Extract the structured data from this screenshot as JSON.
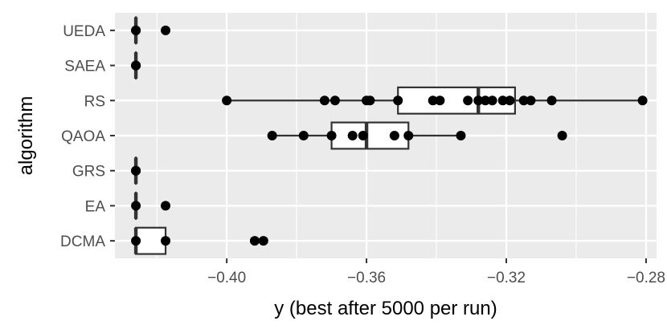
{
  "chart_data": {
    "type": "boxplot",
    "orientation": "horizontal",
    "xlabel": "y (best after 5000 per run)",
    "ylabel": "algorithm",
    "xlim": [
      -0.432,
      -0.277
    ],
    "x_ticks": [
      -0.4,
      -0.36,
      -0.32,
      -0.28
    ],
    "x_tick_labels": [
      "−0.40",
      "−0.36",
      "−0.32",
      "−0.28"
    ],
    "categories": [
      "UEDA",
      "SAEA",
      "RS",
      "QAOA",
      "GRS",
      "EA",
      "DCMA"
    ],
    "grid": true,
    "legend": "none",
    "colors": {
      "panel_bg": "#ebebeb",
      "grid": "#ffffff",
      "box_fill": "#ffffff",
      "box_stroke": "#333333",
      "point": "#000000"
    },
    "boxes": [
      {
        "category": "UEDA",
        "q1": -0.426,
        "median": -0.426,
        "q3": -0.426,
        "whisker_low": -0.426,
        "whisker_high": -0.426
      },
      {
        "category": "SAEA",
        "q1": -0.426,
        "median": -0.426,
        "q3": -0.426,
        "whisker_low": -0.426,
        "whisker_high": -0.426
      },
      {
        "category": "RS",
        "q1": -0.351,
        "median": -0.328,
        "q3": -0.3175,
        "whisker_low": -0.4,
        "whisker_high": -0.281
      },
      {
        "category": "QAOA",
        "q1": -0.37,
        "median": -0.36,
        "q3": -0.348,
        "whisker_low": -0.387,
        "whisker_high": -0.333
      },
      {
        "category": "GRS",
        "q1": -0.426,
        "median": -0.426,
        "q3": -0.426,
        "whisker_low": -0.426,
        "whisker_high": -0.426
      },
      {
        "category": "EA",
        "q1": -0.426,
        "median": -0.426,
        "q3": -0.426,
        "whisker_low": -0.426,
        "whisker_high": -0.426
      },
      {
        "category": "DCMA",
        "q1": -0.426,
        "median": -0.426,
        "q3": -0.4175,
        "whisker_low": -0.426,
        "whisker_high": -0.4175
      }
    ],
    "points": [
      {
        "category": "UEDA",
        "x": [
          -0.426,
          -0.426,
          -0.4175
        ]
      },
      {
        "category": "SAEA",
        "x": [
          -0.426,
          -0.426
        ]
      },
      {
        "category": "RS",
        "x": [
          -0.4,
          -0.372,
          -0.369,
          -0.36,
          -0.359,
          -0.351,
          -0.341,
          -0.339,
          -0.331,
          -0.328,
          -0.326,
          -0.324,
          -0.321,
          -0.319,
          -0.315,
          -0.313,
          -0.307,
          -0.281
        ]
      },
      {
        "category": "QAOA",
        "x": [
          -0.387,
          -0.378,
          -0.37,
          -0.364,
          -0.361,
          -0.352,
          -0.348,
          -0.333,
          -0.304
        ]
      },
      {
        "category": "GRS",
        "x": [
          -0.426,
          -0.426
        ]
      },
      {
        "category": "EA",
        "x": [
          -0.426,
          -0.4175
        ]
      },
      {
        "category": "DCMA",
        "x": [
          -0.426,
          -0.4175,
          -0.392,
          -0.3895
        ]
      }
    ]
  }
}
